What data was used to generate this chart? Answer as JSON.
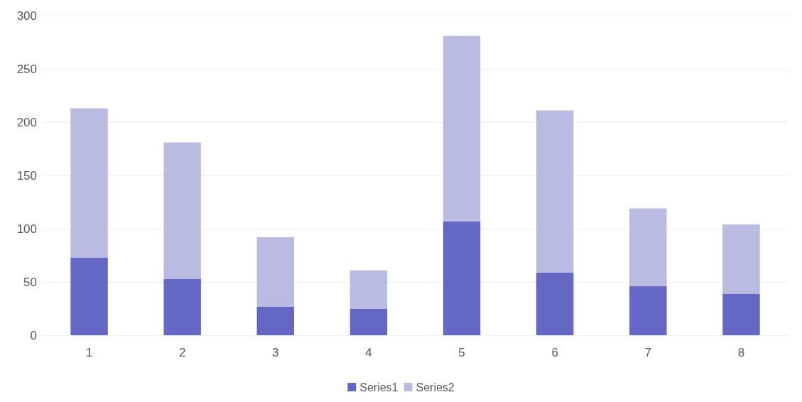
{
  "chart_data": {
    "type": "bar",
    "stacked": true,
    "categories": [
      "1",
      "2",
      "3",
      "4",
      "5",
      "6",
      "7",
      "8"
    ],
    "series": [
      {
        "name": "Series1",
        "color": "#6468c4",
        "values": [
          73,
          53,
          27,
          25,
          107,
          59,
          46,
          39
        ]
      },
      {
        "name": "Series2",
        "color": "#b9bbe0",
        "values": [
          140,
          128,
          65,
          36,
          174,
          152,
          73,
          65
        ]
      }
    ],
    "ylim": [
      0,
      300
    ],
    "yticks": [
      0,
      50,
      100,
      150,
      200,
      250,
      300
    ],
    "grid": "y",
    "legend": "bottom"
  }
}
